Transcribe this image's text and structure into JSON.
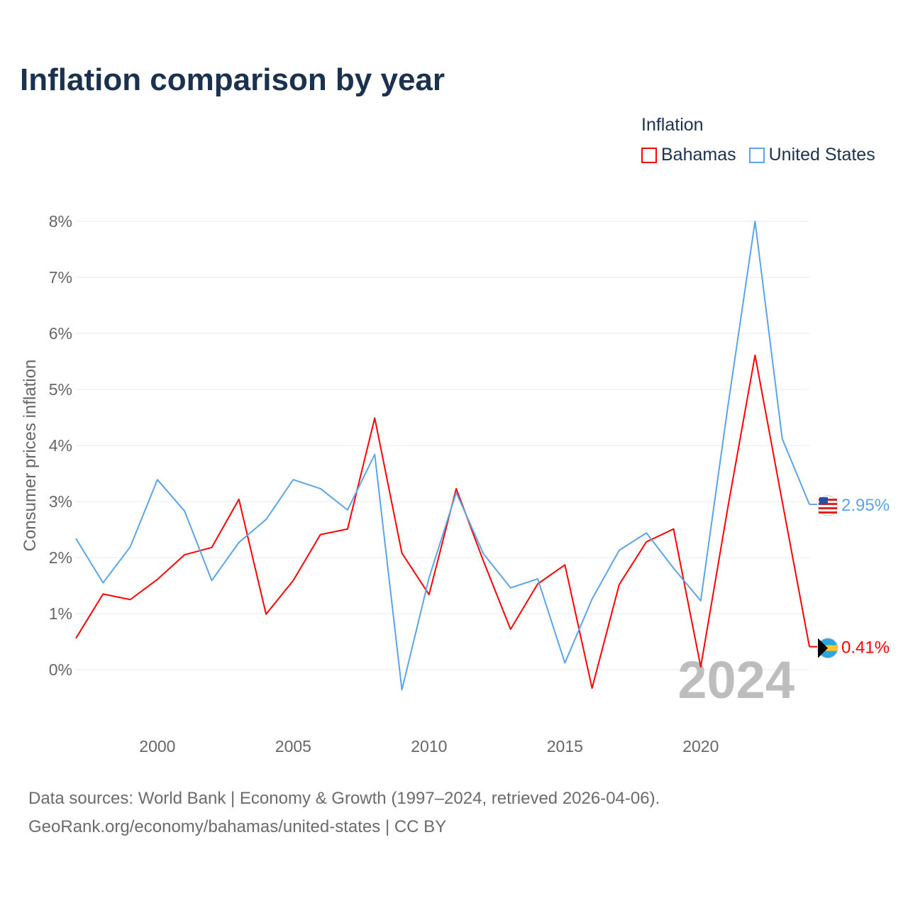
{
  "title": "Inflation comparison by year",
  "legend": {
    "title": "Inflation",
    "items": [
      "Bahamas",
      "United States"
    ]
  },
  "source_lines": [
    "Data sources: World Bank | Economy & Growth (1997–2024, retrieved 2026-04-06).",
    "GeoRank.org/economy/bahamas/united-states | CC BY"
  ],
  "chart_data": {
    "type": "line",
    "title": "Inflation comparison by year",
    "xlabel": "",
    "ylabel": "Consumer prices inflation",
    "ylim": [
      -1,
      8
    ],
    "xlim": [
      1997,
      2024
    ],
    "yticks": [
      0,
      1,
      2,
      3,
      4,
      5,
      6,
      7,
      8
    ],
    "ytick_labels": [
      "0%",
      "1%",
      "2%",
      "3%",
      "4%",
      "5%",
      "6%",
      "7%",
      "8%"
    ],
    "xticks": [
      2000,
      2005,
      2010,
      2015,
      2020
    ],
    "xtick_labels": [
      "2000",
      "2005",
      "2010",
      "2015",
      "2020"
    ],
    "grid": true,
    "legend_position": "top-right",
    "year_watermark": "2024",
    "x": [
      1997,
      1998,
      1999,
      2000,
      2001,
      2002,
      2003,
      2004,
      2005,
      2006,
      2007,
      2008,
      2009,
      2010,
      2011,
      2012,
      2013,
      2014,
      2015,
      2016,
      2017,
      2018,
      2019,
      2020,
      2021,
      2022,
      2023,
      2024
    ],
    "series": [
      {
        "name": "Bahamas",
        "color": "#ff0000",
        "end_label": "0.41%",
        "values": [
          0.56,
          1.35,
          1.25,
          1.61,
          2.05,
          2.18,
          3.04,
          0.99,
          1.59,
          2.41,
          2.51,
          4.49,
          2.08,
          1.34,
          3.23,
          1.94,
          0.72,
          1.53,
          1.87,
          -0.33,
          1.52,
          2.28,
          2.51,
          0.05,
          2.9,
          5.61,
          3.0,
          0.41
        ]
      },
      {
        "name": "United States",
        "color": "#5ba4ea",
        "end_label": "2.95%",
        "values": [
          2.34,
          1.55,
          2.19,
          3.39,
          2.83,
          1.59,
          2.27,
          2.68,
          3.39,
          3.23,
          2.85,
          3.84,
          -0.36,
          1.64,
          3.16,
          2.07,
          1.46,
          1.62,
          0.12,
          1.26,
          2.13,
          2.44,
          1.81,
          1.23,
          4.7,
          8.0,
          4.12,
          2.95
        ]
      }
    ]
  }
}
